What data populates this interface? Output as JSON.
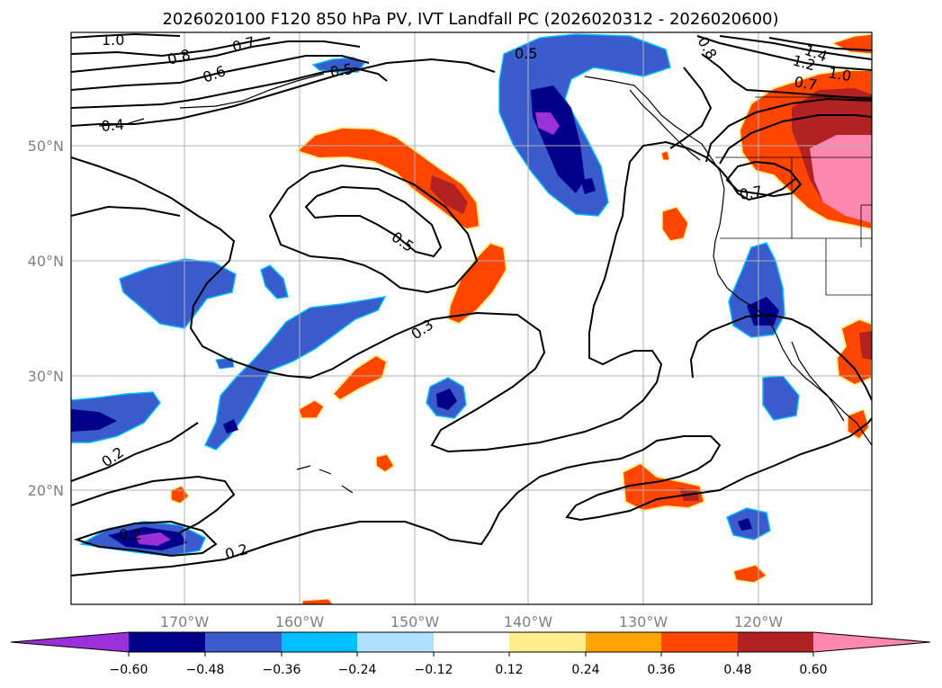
{
  "title": "2026020100 F120 850 hPa PV, IVT Landfall PC (2026020312 - 2026020600)",
  "map": {
    "lon_labels": [
      "170°W",
      "160°W",
      "150°W",
      "140°W",
      "130°W",
      "120°W"
    ],
    "lat_labels": [
      "50°N",
      "40°N",
      "30°N",
      "20°N"
    ],
    "contour_labels": [
      "1.0",
      "0.8",
      "0.7",
      "0.6",
      "0.5",
      "0.4",
      "0.5",
      "0.3",
      "0.2",
      "0.2",
      "0.2",
      "0.5",
      "0.7",
      "1.4",
      "1.2",
      "1.0",
      "0.7",
      "0.8"
    ]
  },
  "colorbar": {
    "ticks": [
      "−0.60",
      "−0.48",
      "−0.36",
      "−0.24",
      "−0.12",
      "0.12",
      "0.24",
      "0.36",
      "0.48",
      "0.60"
    ],
    "colors": [
      "#9b30d8",
      "#00008b",
      "#3a5bcc",
      "#00bfff",
      "#b0e2ff",
      "#ffffff",
      "#ffec8b",
      "#ffa500",
      "#ff4500",
      "#b22222",
      "#ff88b0"
    ]
  },
  "colors": {
    "neg_purple": "#9b30d8",
    "neg_navy": "#00008b",
    "neg_blue": "#3a5bcc",
    "neg_cyan": "#00bfff",
    "neg_light": "#b0e2ff",
    "pos_yellow": "#ffec8b",
    "pos_orange": "#ffa500",
    "pos_redorange": "#ff4500",
    "pos_darkred": "#b22222",
    "pos_pink": "#ff88b0",
    "grid": "#b0b0b0",
    "contour": "#000000"
  }
}
